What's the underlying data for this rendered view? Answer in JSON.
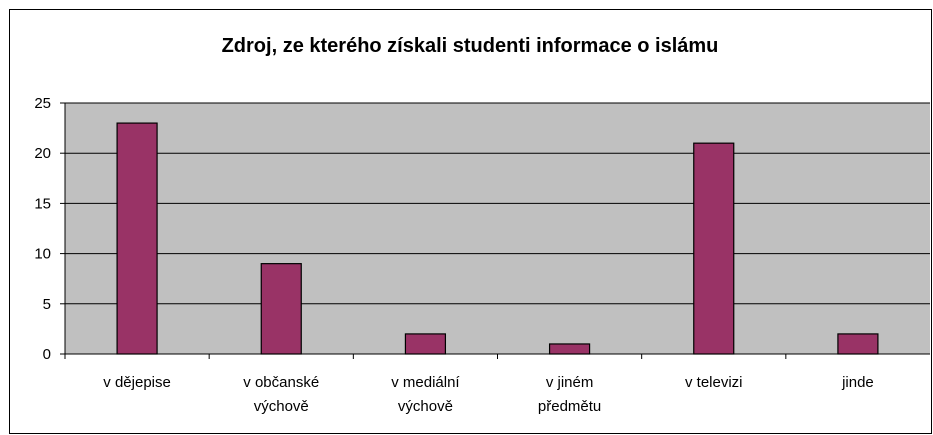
{
  "chart_data": {
    "type": "bar",
    "title": "Zdroj, ze kterého získali studenti informace o islámu",
    "categories": [
      "v dějepise",
      "v občanské\nvýchově",
      "v mediální\nvýchově",
      "v jiném\npředmětu",
      "v televizi",
      "jinde"
    ],
    "values": [
      23,
      9,
      2,
      1,
      21,
      2
    ],
    "color": "#993366",
    "ylim": [
      0,
      25
    ],
    "yticks": [
      0,
      5,
      10,
      15,
      20,
      25
    ],
    "grid": true
  }
}
